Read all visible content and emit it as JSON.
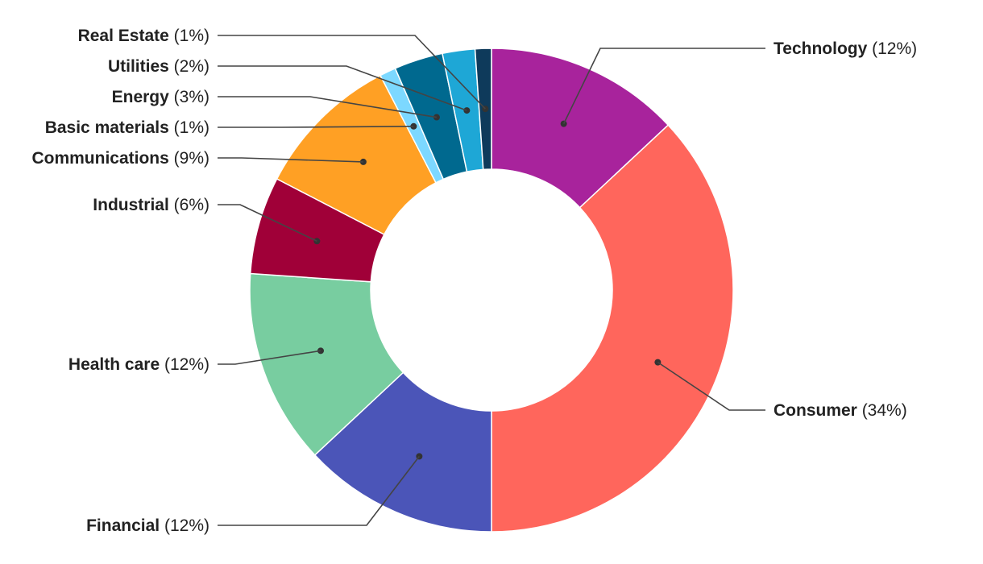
{
  "chart_data": {
    "type": "pie",
    "donut": true,
    "title": "",
    "slices": [
      {
        "name": "Technology",
        "pct_label": "(12%)",
        "value": 12,
        "color": "#A8239C"
      },
      {
        "name": "Consumer",
        "pct_label": "(34%)",
        "value": 34,
        "color": "#FF665C"
      },
      {
        "name": "Financial",
        "pct_label": "(12%)",
        "value": 12,
        "color": "#4B55B8"
      },
      {
        "name": "Health care",
        "pct_label": "(12%)",
        "value": 12,
        "color": "#78CDA0"
      },
      {
        "name": "Industrial",
        "pct_label": "(6%)",
        "value": 6,
        "color": "#A00038"
      },
      {
        "name": "Communications",
        "pct_label": "(9%)",
        "value": 9,
        "color": "#FFA024"
      },
      {
        "name": "Basic materials",
        "pct_label": "(1%)",
        "value": 1,
        "color": "#7CD8FF"
      },
      {
        "name": "Energy",
        "pct_label": "(3%)",
        "value": 3,
        "color": "#00698F"
      },
      {
        "name": "Utilities",
        "pct_label": "(2%)",
        "value": 2,
        "color": "#1EA7D6"
      },
      {
        "name": "Real Estate",
        "pct_label": "(1%)",
        "value": 1,
        "color": "#0E3A5B"
      }
    ]
  }
}
